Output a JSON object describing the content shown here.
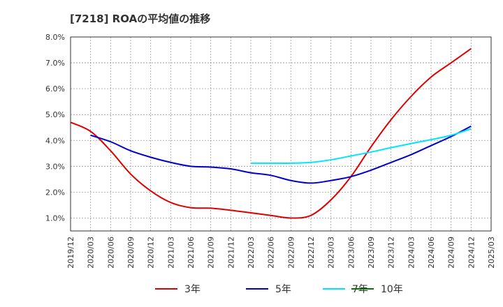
{
  "chart_data": {
    "type": "line",
    "title": "[7218]  ROAの平均値の推移",
    "xlabel": "",
    "ylabel": "",
    "ylim": [
      0.5,
      8.0
    ],
    "yticks": [
      1.0,
      2.0,
      3.0,
      4.0,
      5.0,
      6.0,
      7.0,
      8.0
    ],
    "ytick_labels": [
      "1.0%",
      "2.0%",
      "3.0%",
      "4.0%",
      "5.0%",
      "6.0%",
      "7.0%",
      "8.0%"
    ],
    "categories": [
      "2019/12",
      "2020/03",
      "2020/06",
      "2020/09",
      "2020/12",
      "2021/03",
      "2021/06",
      "2021/09",
      "2021/12",
      "2022/03",
      "2022/06",
      "2022/09",
      "2022/12",
      "2023/03",
      "2023/06",
      "2023/09",
      "2023/12",
      "2024/03",
      "2024/06",
      "2024/09",
      "2024/12",
      "2025/03"
    ],
    "grid": true,
    "legend_position": "bottom",
    "series": [
      {
        "name": "3年",
        "color": "#dd0000",
        "values": [
          4.7,
          4.35,
          3.6,
          2.7,
          2.05,
          1.6,
          1.4,
          1.38,
          1.3,
          1.2,
          1.1,
          1.0,
          1.1,
          1.7,
          2.6,
          3.75,
          4.8,
          5.7,
          6.45,
          7.0,
          7.55,
          null
        ]
      },
      {
        "name": "5年",
        "color": "#0000cc",
        "values": [
          null,
          4.2,
          3.95,
          3.6,
          3.35,
          3.15,
          3.0,
          2.97,
          2.9,
          2.75,
          2.65,
          2.45,
          2.35,
          2.45,
          2.6,
          2.85,
          3.15,
          3.45,
          3.8,
          4.15,
          4.55,
          null
        ]
      },
      {
        "name": "7年",
        "color": "#00e5ff",
        "values": [
          null,
          null,
          null,
          null,
          null,
          null,
          null,
          null,
          null,
          3.12,
          3.12,
          3.12,
          3.15,
          3.25,
          3.4,
          3.55,
          3.72,
          3.88,
          4.03,
          4.2,
          4.45,
          null
        ]
      },
      {
        "name": "10年",
        "color": "#007700",
        "values": [
          null,
          null,
          null,
          null,
          null,
          null,
          null,
          null,
          null,
          null,
          null,
          null,
          null,
          null,
          null,
          null,
          null,
          null,
          null,
          null,
          null,
          null
        ]
      }
    ]
  }
}
